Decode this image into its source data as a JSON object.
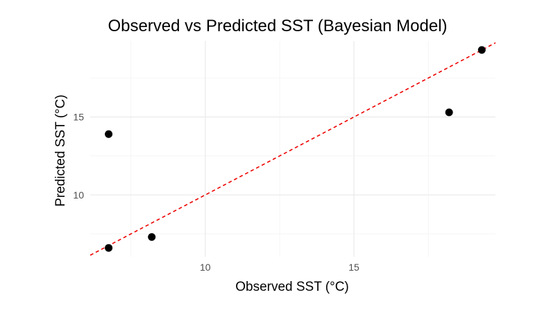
{
  "chart_data": {
    "type": "scatter",
    "title": "Observed vs Predicted SST (Bayesian Model)",
    "xlabel": "Observed SST (°C)",
    "ylabel": "Predicted SST (°C)",
    "xlim": [
      6.13,
      19.76
    ],
    "ylim": [
      6.03,
      19.88
    ],
    "x_ticks": [
      10,
      15
    ],
    "y_ticks": [
      10,
      15
    ],
    "x_minor": [
      7.5,
      12.5,
      17.5
    ],
    "y_minor": [
      7.5,
      12.5,
      17.5
    ],
    "grid": true,
    "points": [
      {
        "x": 6.75,
        "y": 13.9
      },
      {
        "x": 6.75,
        "y": 6.6
      },
      {
        "x": 8.2,
        "y": 7.3
      },
      {
        "x": 18.2,
        "y": 15.3
      },
      {
        "x": 19.3,
        "y": 19.3
      }
    ],
    "reference_line": {
      "type": "identity",
      "slope": 1,
      "intercept": 0,
      "style": "dashed"
    },
    "colors": {
      "points": "#000000",
      "reference_line": "#ee0000",
      "grid": "#ebebeb"
    }
  }
}
